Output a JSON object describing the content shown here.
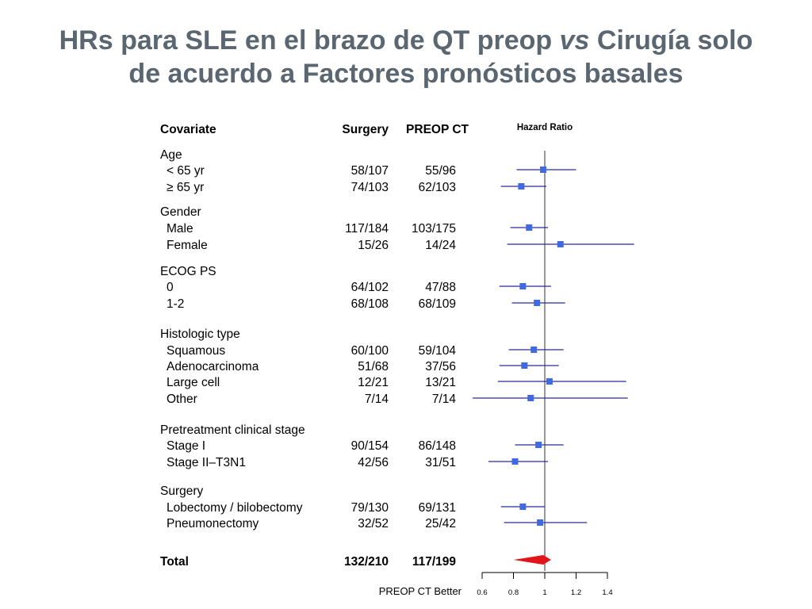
{
  "title": {
    "line1_pre": "HRs para SLE en el brazo de QT preop ",
    "line1_vs": "vs",
    "line1_post": " Cirugía solo",
    "line2": "de acuerdo a Factores pronósticos basales"
  },
  "chart_data": {
    "type": "forest",
    "columns": {
      "covariate": "Covariate",
      "surgery": "Surgery",
      "preop": "PREOP CT"
    },
    "axis_title": "Hazard Ratio",
    "xlim": [
      0.6,
      1.4
    ],
    "ticks": [
      "0.6",
      "0.8",
      "1",
      "1.2",
      "1.4"
    ],
    "reference_line": 1,
    "favors_label": "PREOP CT Better",
    "colors": {
      "marker": "#4169e1",
      "ci": "#2a2aa0",
      "total": "#e4141b",
      "refline": "#555555"
    },
    "groups": [
      {
        "name": "Age",
        "rows": [
          {
            "label": "< 65 yr",
            "surgery": "58/107",
            "preop": "55/96",
            "hr": 0.99,
            "lo": 0.82,
            "hi": 1.2
          },
          {
            "label": "≥ 65 yr",
            "surgery": "74/103",
            "preop": "62/103",
            "hr": 0.85,
            "lo": 0.72,
            "hi": 1.01
          }
        ]
      },
      {
        "name": "Gender",
        "rows": [
          {
            "label": "Male",
            "surgery": "117/184",
            "preop": "103/175",
            "hr": 0.9,
            "lo": 0.78,
            "hi": 1.02
          },
          {
            "label": "Female",
            "surgery": "15/26",
            "preop": "14/24",
            "hr": 1.1,
            "lo": 0.76,
            "hi": 1.57
          }
        ]
      },
      {
        "name": "ECOG PS",
        "rows": [
          {
            "label": "0",
            "surgery": "64/102",
            "preop": "47/88",
            "hr": 0.86,
            "lo": 0.71,
            "hi": 1.04
          },
          {
            "label": "1-2",
            "surgery": "68/108",
            "preop": "68/109",
            "hr": 0.95,
            "lo": 0.79,
            "hi": 1.13
          }
        ]
      },
      {
        "name": "Histologic type",
        "rows": [
          {
            "label": "Squamous",
            "surgery": "60/100",
            "preop": "59/104",
            "hr": 0.93,
            "lo": 0.77,
            "hi": 1.12
          },
          {
            "label": "Adenocarcinoma",
            "surgery": "51/68",
            "preop": "37/56",
            "hr": 0.87,
            "lo": 0.71,
            "hi": 1.09
          },
          {
            "label": "Large cell",
            "surgery": "12/21",
            "preop": "13/21",
            "hr": 1.03,
            "lo": 0.7,
            "hi": 1.52
          },
          {
            "label": "Other",
            "surgery": "7/14",
            "preop": "7/14",
            "hr": 0.91,
            "lo": 0.54,
            "hi": 1.53
          }
        ]
      },
      {
        "name": "Pretreatment clinical stage",
        "rows": [
          {
            "label": "Stage I",
            "surgery": "90/154",
            "preop": "86/148",
            "hr": 0.96,
            "lo": 0.81,
            "hi": 1.12
          },
          {
            "label": "Stage II–T3N1",
            "surgery": "42/56",
            "preop": "31/51",
            "hr": 0.81,
            "lo": 0.64,
            "hi": 1.02
          }
        ]
      },
      {
        "name": "Surgery",
        "rows": [
          {
            "label": "Lobectomy / bilobectomy",
            "surgery": "79/130",
            "preop": "69/131",
            "hr": 0.86,
            "lo": 0.72,
            "hi": 1.0
          },
          {
            "label": "Pneumonectomy",
            "surgery": "32/52",
            "preop": "25/42",
            "hr": 0.97,
            "lo": 0.74,
            "hi": 1.27
          }
        ]
      }
    ],
    "total": {
      "label": "Total",
      "surgery": "132/210",
      "preop": "117/199",
      "hr": 0.99,
      "lo": 0.8,
      "hi": 1.04
    }
  }
}
